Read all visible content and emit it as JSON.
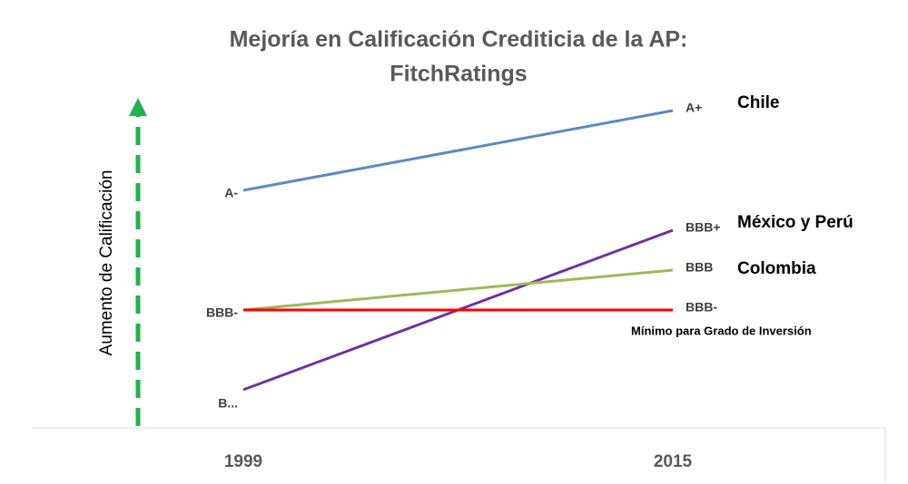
{
  "chart_data": {
    "type": "line",
    "title": [
      "Mejoría en Calificación Crediticia de la AP:",
      "FitchRatings"
    ],
    "annotation": "Aumento de Calificación",
    "categories": [
      "1999",
      "2015"
    ],
    "ylim": [
      -3,
      6
    ],
    "series": [
      {
        "name": "Chile",
        "color": "#5b8ac6",
        "values": [
          3,
          5
        ],
        "value_labels": [
          "A-",
          "A+"
        ]
      },
      {
        "name": "México y Perú",
        "color": "#7030a0",
        "values": [
          -2,
          2
        ],
        "value_labels": [
          "B...",
          "BBB+"
        ]
      },
      {
        "name": "Colombia",
        "color": "#9bbb59",
        "values": [
          0,
          1
        ],
        "value_labels": [
          "BBB-",
          "BBB"
        ]
      },
      {
        "name": "Mínimo para Grado de Inversión",
        "color": "#ff0000",
        "values": [
          0,
          0
        ],
        "value_labels": [
          "BBB-",
          "BBB-"
        ]
      }
    ]
  }
}
